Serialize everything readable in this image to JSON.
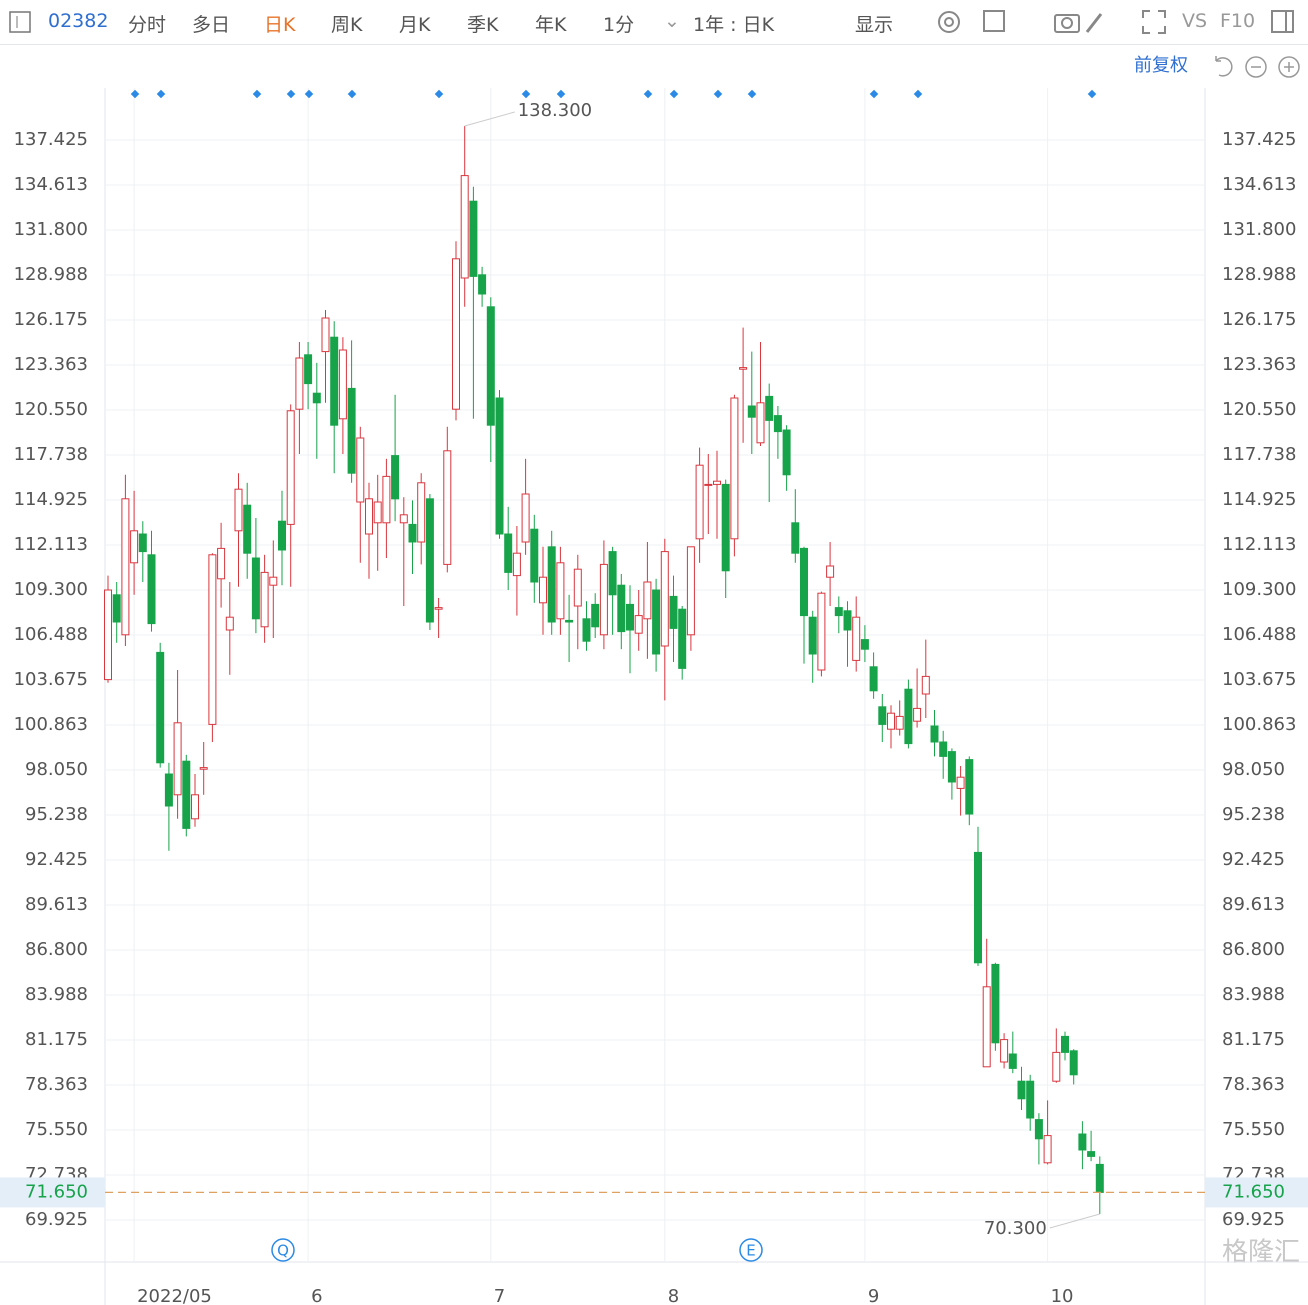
{
  "toolbar": {
    "code": "02382",
    "tabs": [
      "分时",
      "多日",
      "日K",
      "周K",
      "月K",
      "季K",
      "年K",
      "1分"
    ],
    "range": "1年 : 日K",
    "display": "显示",
    "vs": "VS",
    "f10": "F10",
    "adjust": "前复权"
  },
  "watermark": "格隆汇",
  "chart_data": {
    "type": "candlestick",
    "ylim": [
      67.3,
      140.675
    ],
    "yticks": [
      137.425,
      134.613,
      {
        "value": 131.8,
        "label": "131.800"
      },
      128.988,
      126.175,
      123.363,
      {
        "value": 120.55,
        "label": "120.550"
      },
      117.738,
      114.925,
      112.113,
      {
        "value": 109.3,
        "label": "109.300"
      },
      106.488,
      103.675,
      100.863,
      {
        "value": 98.05,
        "label": "98.050"
      },
      95.238,
      92.425,
      89.613,
      {
        "value": 86.8,
        "label": "86.800"
      },
      83.988,
      81.175,
      78.363,
      {
        "value": 75.55,
        "label": "75.550"
      },
      72.738,
      69.925
    ],
    "xticks": [
      {
        "value": 3,
        "label": "2022/05"
      },
      {
        "value": 23,
        "label": "6"
      },
      {
        "value": 44,
        "label": "7"
      },
      {
        "value": 64,
        "label": "8"
      },
      {
        "value": 87,
        "label": "9"
      },
      {
        "value": 108,
        "label": "10"
      }
    ],
    "up_color": "#d9363e",
    "down_color": "#16a34a",
    "max_annotation": {
      "value": 138.3,
      "label": "138.300"
    },
    "min_annotation": {
      "value": 70.3,
      "label": "70.300"
    },
    "last_price": {
      "value": 71.65,
      "label": "71.650"
    },
    "events": [
      "Q",
      "E"
    ],
    "candles": [
      [
        103.7,
        110.2,
        103.5,
        109.3
      ],
      [
        109,
        109.8,
        106,
        107.3
      ],
      [
        106.5,
        116.5,
        105.8,
        115
      ],
      [
        111,
        115.5,
        109,
        113
      ],
      [
        112.8,
        113.6,
        109.8,
        111.7
      ],
      [
        111.5,
        113,
        106.7,
        107.2
      ],
      [
        105.4,
        106,
        98.2,
        98.5
      ],
      [
        97.8,
        98.5,
        93,
        95.8
      ],
      [
        96.5,
        104.3,
        95,
        101
      ],
      [
        98.6,
        99,
        93.9,
        94.4
      ],
      [
        95,
        97.8,
        94.5,
        96.5
      ],
      [
        98.1,
        99.8,
        96.5,
        98.2
      ],
      [
        100.9,
        111.6,
        99.8,
        111.5
      ],
      [
        110,
        113.5,
        108.2,
        111.9
      ],
      [
        106.8,
        109.8,
        104,
        107.6
      ],
      [
        113,
        116.6,
        109.5,
        115.6
      ],
      [
        114.6,
        116,
        110,
        111.6
      ],
      [
        111.3,
        113.8,
        106.6,
        107.5
      ],
      [
        107,
        111.5,
        106,
        110.4
      ],
      [
        109.6,
        112.4,
        106.3,
        110.1
      ],
      [
        113.6,
        115.5,
        109.6,
        111.8
      ],
      [
        113.4,
        120.9,
        109.5,
        120.5
      ],
      [
        120.6,
        124.8,
        117.8,
        123.8
      ],
      [
        124,
        124.8,
        120.6,
        122.2
      ],
      [
        121.6,
        123.5,
        117.5,
        121
      ],
      [
        124.2,
        126.8,
        121,
        126.3
      ],
      [
        125.1,
        126.1,
        116.6,
        119.6
      ],
      [
        120,
        125.1,
        117.8,
        124.3
      ],
      [
        121.9,
        124.9,
        116,
        116.6
      ],
      [
        114.8,
        119.5,
        111,
        118.8
      ],
      [
        112.8,
        116,
        110,
        115
      ],
      [
        113.5,
        116.5,
        110.5,
        114.8
      ],
      [
        113.5,
        117.5,
        111.3,
        116.4
      ],
      [
        117.7,
        121.5,
        113.6,
        115
      ],
      [
        113.5,
        115.1,
        108.3,
        114
      ],
      [
        113.4,
        114.9,
        110.3,
        112.3
      ],
      [
        112.3,
        116.6,
        110.9,
        116
      ],
      [
        115,
        115.3,
        106.8,
        107.3
      ],
      [
        108.1,
        108.8,
        106.3,
        108.2
      ],
      [
        110.9,
        119.5,
        110.4,
        118
      ],
      [
        120.6,
        131.1,
        119.9,
        130
      ],
      [
        128.8,
        138.3,
        127,
        135.2
      ],
      [
        133.6,
        134.5,
        120,
        128.9
      ],
      [
        129,
        129.5,
        127,
        127.8
      ],
      [
        127,
        127.6,
        117.3,
        119.6
      ],
      [
        121.3,
        121.8,
        112.5,
        112.8
      ],
      [
        112.8,
        114.5,
        109.3,
        110.4
      ],
      [
        110.2,
        113.3,
        107.7,
        111.6
      ],
      [
        112.3,
        117.5,
        111.5,
        115.3
      ],
      [
        113.1,
        114,
        108.5,
        109.8
      ],
      [
        108.5,
        112,
        106.5,
        110.1
      ],
      [
        112,
        113,
        106.5,
        107.3
      ],
      [
        107.5,
        112,
        106.5,
        111
      ],
      [
        107.4,
        109,
        104.8,
        107.3
      ],
      [
        108.3,
        111.5,
        105.6,
        110.6
      ],
      [
        107.5,
        108.6,
        105.5,
        106.1
      ],
      [
        108.4,
        109.1,
        106.3,
        107
      ],
      [
        106.5,
        112.4,
        105.6,
        110.9
      ],
      [
        111.7,
        112,
        106.5,
        109
      ],
      [
        109.6,
        110.3,
        105.6,
        106.7
      ],
      [
        108.4,
        109.6,
        104.1,
        106.8
      ],
      [
        106.6,
        109.3,
        105.5,
        107.7
      ],
      [
        107.5,
        112.3,
        105,
        109.8
      ],
      [
        109.3,
        110,
        104.2,
        105.3
      ],
      [
        105.8,
        112.5,
        102.4,
        111.7
      ],
      [
        108.9,
        110.2,
        104.8,
        106.9
      ],
      [
        108.1,
        108.3,
        103.7,
        104.4
      ],
      [
        106.5,
        112,
        105.5,
        112
      ],
      [
        112.5,
        118.2,
        111,
        117.1
      ],
      [
        115.9,
        117.8,
        112.8,
        115.9
      ],
      [
        115.9,
        118,
        112.5,
        116.1
      ],
      [
        115.9,
        116.2,
        108.8,
        110.5
      ],
      [
        112.5,
        121.5,
        111.4,
        121.3
      ],
      [
        123.1,
        125.7,
        118.5,
        123.2
      ],
      [
        120.8,
        124.2,
        117.8,
        120.1
      ],
      [
        118.5,
        124.8,
        118.3,
        121
      ],
      [
        121.4,
        122.2,
        114.8,
        119.9
      ],
      [
        120.2,
        120.8,
        117.5,
        119.2
      ],
      [
        119.3,
        119.6,
        115.5,
        116.5
      ],
      [
        113.5,
        115.6,
        111,
        111.6
      ],
      [
        111.9,
        112,
        104.7,
        107.7
      ],
      [
        107.6,
        108,
        103.5,
        105.3
      ],
      [
        104.3,
        109.2,
        103.9,
        109.1
      ],
      [
        110.1,
        112.3,
        108.3,
        110.8
      ],
      [
        108.2,
        108.9,
        106.6,
        107.7
      ],
      [
        108,
        108.6,
        104.5,
        106.8
      ],
      [
        104.9,
        108.9,
        104.2,
        107.6
      ],
      [
        106.2,
        107.1,
        104.8,
        105.6
      ],
      [
        104.5,
        105.4,
        102.5,
        103
      ],
      [
        102,
        102.8,
        99.8,
        100.9
      ],
      [
        100.6,
        102.1,
        99.4,
        101.6
      ],
      [
        100.6,
        102.4,
        100.2,
        101.4
      ],
      [
        103.1,
        103.7,
        99.4,
        99.7
      ],
      [
        101.1,
        104.4,
        100.7,
        101.9
      ],
      [
        102.8,
        106.2,
        101.3,
        103.9
      ],
      [
        100.8,
        101.8,
        98.9,
        99.8
      ],
      [
        99.8,
        100.5,
        97.5,
        98.9
      ],
      [
        99.2,
        99.4,
        96.2,
        97.3
      ],
      [
        96.9,
        98.3,
        95.2,
        97.6
      ],
      [
        98.7,
        98.9,
        94.6,
        95.3
      ],
      [
        92.9,
        94.5,
        85.8,
        86
      ],
      [
        79.5,
        87.5,
        79.5,
        84.5
      ],
      [
        85.9,
        86,
        80.5,
        81
      ],
      [
        79.8,
        81.6,
        79.4,
        81.2
      ],
      [
        80.3,
        81.7,
        79.1,
        79.4
      ],
      [
        78.6,
        79.5,
        76.8,
        77.5
      ],
      [
        78.6,
        79,
        75.5,
        76.3
      ],
      [
        76.2,
        76.6,
        73.4,
        75
      ],
      [
        73.5,
        77.4,
        73.4,
        75.2
      ],
      [
        78.6,
        81.9,
        78.5,
        80.4
      ],
      [
        81.4,
        81.7,
        79.9,
        80.4
      ],
      [
        80.5,
        80.6,
        78.4,
        79
      ],
      [
        75.3,
        76.1,
        73.1,
        74.3
      ],
      [
        74.2,
        75.5,
        73.6,
        73.9
      ],
      [
        73.4,
        73.9,
        70.3,
        71.65
      ]
    ]
  }
}
